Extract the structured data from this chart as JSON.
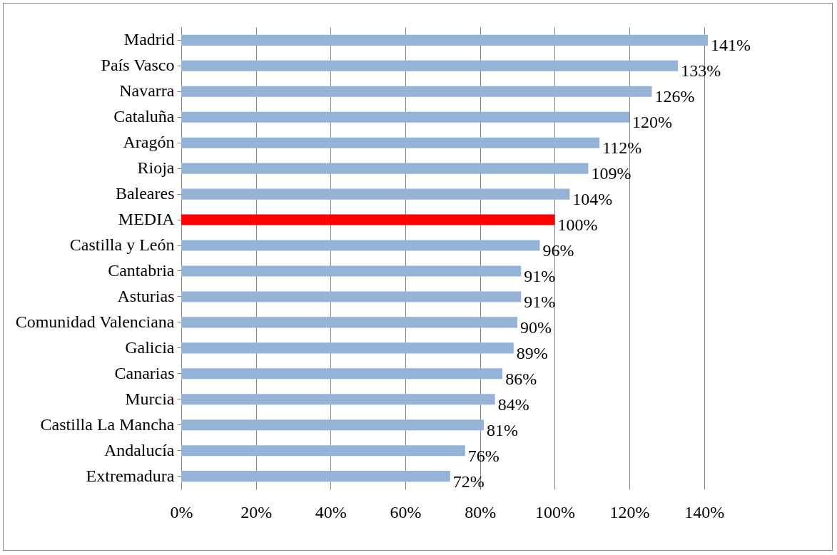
{
  "chart_data": {
    "type": "bar",
    "orientation": "horizontal",
    "categories": [
      "Madrid",
      "País Vasco",
      "Navarra",
      "Cataluña",
      "Aragón",
      "Rioja",
      "Baleares",
      "MEDIA",
      "Castilla y León",
      "Cantabria",
      "Asturias",
      "Comunidad Valenciana",
      "Galicia",
      "Canarias",
      "Murcia",
      "Castilla La Mancha",
      "Andalucía",
      "Extremadura"
    ],
    "values": [
      141,
      133,
      126,
      120,
      112,
      109,
      104,
      100,
      96,
      91,
      91,
      90,
      89,
      86,
      84,
      81,
      76,
      72
    ],
    "value_labels": [
      "141%",
      "133%",
      "126%",
      "120%",
      "112%",
      "109%",
      "104%",
      "100%",
      "96%",
      "91%",
      "91%",
      "90%",
      "89%",
      "86%",
      "84%",
      "81%",
      "76%",
      "72%"
    ],
    "colors": [
      "#95b3d7",
      "#95b3d7",
      "#95b3d7",
      "#95b3d7",
      "#95b3d7",
      "#95b3d7",
      "#95b3d7",
      "#ff0000",
      "#95b3d7",
      "#95b3d7",
      "#95b3d7",
      "#95b3d7",
      "#95b3d7",
      "#95b3d7",
      "#95b3d7",
      "#95b3d7",
      "#95b3d7",
      "#95b3d7"
    ],
    "xlim": [
      0,
      141
    ],
    "xticks": [
      {
        "value": 0,
        "label": "0%"
      },
      {
        "value": 20,
        "label": "20%"
      },
      {
        "value": 40,
        "label": "40%"
      },
      {
        "value": 60,
        "label": "60%"
      },
      {
        "value": 80,
        "label": "80%"
      },
      {
        "value": 100,
        "label": "100%"
      },
      {
        "value": 120,
        "label": "120%"
      },
      {
        "value": 140,
        "label": "140%"
      }
    ],
    "grid": "x"
  }
}
